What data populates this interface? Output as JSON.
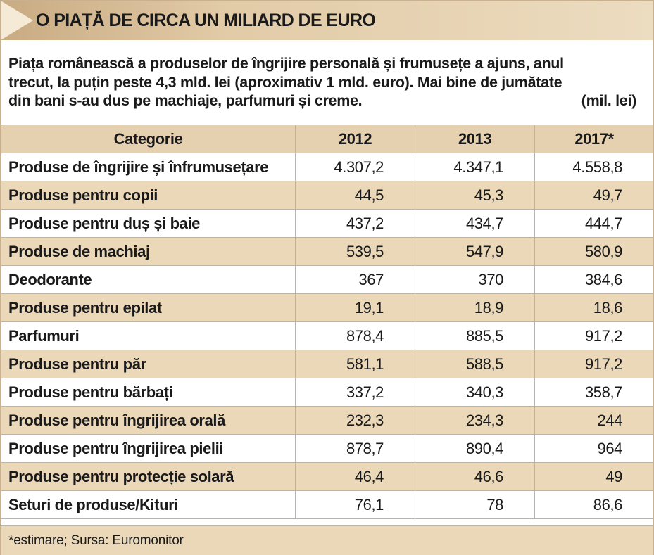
{
  "header": {
    "title": "O PIAȚĂ DE CIRCA UN MILIARD DE EURO"
  },
  "intro": {
    "line1": "Piața românească a produselor de îngrijire personală și frumusețe a ajuns, anul",
    "line2": "trecut, la puțin peste 4,3 mld. lei (aproximativ 1 mld. euro).  Mai bine de jumătate",
    "line3": "din bani s-au dus pe machiaje, parfumuri și creme.",
    "unit": "(mil. lei)"
  },
  "footer": {
    "note": "*estimare; Sursa: Euromonitor"
  },
  "colors": {
    "header_bg": "#e5d1b0",
    "alt_row_bg": "#ead8b9",
    "border": "#c9b08f"
  },
  "chart_data": {
    "type": "table",
    "title": "O PIAȚĂ DE CIRCA UN MILIARD DE EURO",
    "unit": "(mil. lei)",
    "columns": [
      "Categorie",
      "2012",
      "2013",
      "2017*"
    ],
    "rows": [
      [
        "Produse de îngrijire și înfrumusețare",
        "4.307,2",
        "4.347,1",
        "4.558,8"
      ],
      [
        "Produse pentru copii",
        "44,5",
        "45,3",
        "49,7"
      ],
      [
        "Produse pentru duș și baie",
        "437,2",
        "434,7",
        "444,7"
      ],
      [
        "Produse de machiaj",
        "539,5",
        "547,9",
        "580,9"
      ],
      [
        "Deodorante",
        "367",
        "370",
        "384,6"
      ],
      [
        "Produse pentru epilat",
        "19,1",
        "18,9",
        "18,6"
      ],
      [
        "Parfumuri",
        "878,4",
        "885,5",
        "917,2"
      ],
      [
        "Produse pentru păr",
        "581,1",
        "588,5",
        "917,2"
      ],
      [
        "Produse pentru bărbați",
        "337,2",
        "340,3",
        "358,7"
      ],
      [
        "Produse pentru îngrijirea orală",
        "232,3",
        "234,3",
        "244"
      ],
      [
        "Produse pentru îngrijirea pielii",
        "878,7",
        "890,4",
        "964"
      ],
      [
        "Produse pentru protecție solară",
        "46,4",
        "46,6",
        "49"
      ],
      [
        "Seturi de produse/Kituri",
        "76,1",
        "78",
        "86,6"
      ]
    ],
    "note": "*estimare; Sursa: Euromonitor"
  }
}
